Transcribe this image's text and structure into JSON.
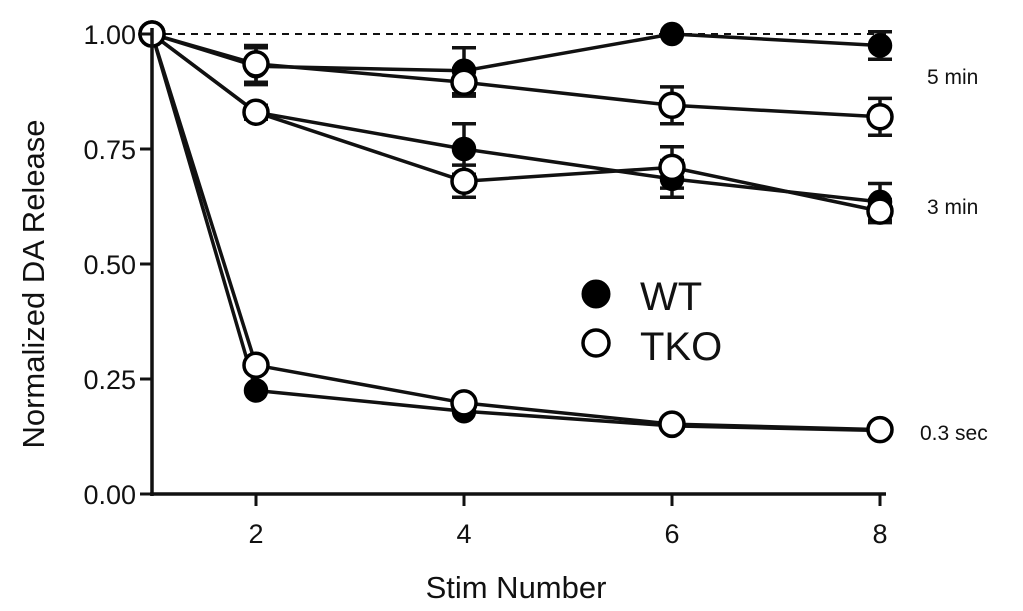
{
  "chart_data": {
    "type": "line",
    "title": "",
    "xlabel": "Stim Number",
    "ylabel": "Normalized DA Release",
    "xlim": [
      1,
      8.2
    ],
    "ylim": [
      0,
      1.0
    ],
    "x_ticks": [
      2,
      4,
      6,
      8
    ],
    "x_tick_labels": [
      "2",
      "4",
      "6",
      "8"
    ],
    "y_ticks": [
      0,
      0.25,
      0.5,
      0.75,
      1.0
    ],
    "y_tick_labels": [
      "0.00",
      "0.25",
      "0.50",
      "0.75",
      "1.00"
    ],
    "reference_line": {
      "y": 1.0,
      "style": "dashed"
    },
    "legend": {
      "position": "center-right",
      "entries": [
        {
          "label": "WT",
          "marker": "filled-circle"
        },
        {
          "label": "TKO",
          "marker": "open-circle"
        }
      ]
    },
    "interval_labels": [
      "5 min",
      "3 min",
      "0.3 sec"
    ],
    "x": [
      1,
      2,
      4,
      6,
      8
    ],
    "series": [
      {
        "genotype": "WT",
        "interval": "5 min",
        "marker": "filled",
        "values": [
          1.0,
          0.93,
          0.92,
          1.0,
          0.975
        ],
        "errors": [
          0,
          0.04,
          0.05,
          0,
          0.03
        ]
      },
      {
        "genotype": "TKO",
        "interval": "5 min",
        "marker": "open",
        "values": [
          1.0,
          0.935,
          0.895,
          0.845,
          0.82
        ],
        "errors": [
          0,
          0.04,
          0.03,
          0.04,
          0.04
        ]
      },
      {
        "genotype": "WT",
        "interval": "3 min",
        "marker": "filled",
        "values": [
          1.0,
          0.83,
          0.75,
          0.685,
          0.635
        ],
        "errors": [
          0,
          0.015,
          0.055,
          0.04,
          0.04
        ]
      },
      {
        "genotype": "TKO",
        "interval": "3 min",
        "marker": "open",
        "values": [
          1.0,
          0.83,
          0.68,
          0.71,
          0.615
        ],
        "errors": [
          0,
          0.015,
          0.035,
          0.045,
          0.025
        ]
      },
      {
        "genotype": "WT",
        "interval": "0.3 sec",
        "marker": "filled",
        "values": [
          1.0,
          0.225,
          0.18,
          0.148,
          0.138
        ],
        "errors": [
          0,
          0,
          0,
          0,
          0
        ]
      },
      {
        "genotype": "TKO",
        "interval": "0.3 sec",
        "marker": "open",
        "values": [
          1.0,
          0.28,
          0.198,
          0.152,
          0.14
        ],
        "errors": [
          0,
          0,
          0,
          0,
          0
        ]
      }
    ]
  }
}
